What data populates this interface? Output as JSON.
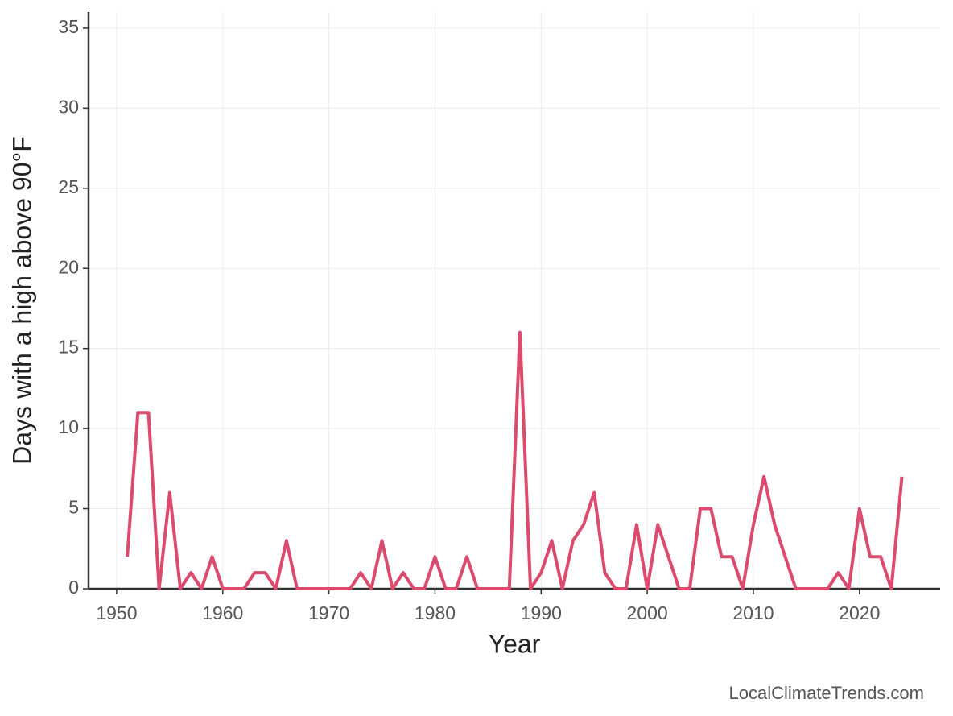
{
  "chart_data": {
    "type": "line",
    "x_label": "Year",
    "y_label": "Days with a high above 90°F",
    "source": "LocalClimateTrends.com",
    "x": [
      1951,
      1952,
      1953,
      1954,
      1955,
      1956,
      1957,
      1958,
      1959,
      1960,
      1961,
      1962,
      1963,
      1964,
      1965,
      1966,
      1967,
      1968,
      1969,
      1970,
      1971,
      1972,
      1973,
      1974,
      1975,
      1976,
      1977,
      1978,
      1979,
      1980,
      1981,
      1982,
      1983,
      1984,
      1985,
      1986,
      1987,
      1988,
      1989,
      1990,
      1991,
      1992,
      1993,
      1994,
      1995,
      1996,
      1997,
      1998,
      1999,
      2000,
      2001,
      2002,
      2003,
      2004,
      2005,
      2006,
      2007,
      2008,
      2009,
      2010,
      2011,
      2012,
      2013,
      2014,
      2015,
      2016,
      2017,
      2018,
      2019,
      2020,
      2021,
      2022,
      2023,
      2024
    ],
    "series": [
      {
        "color": "#dc4a6e",
        "values": [
          2,
          11,
          11,
          0,
          6,
          0,
          1,
          0,
          2,
          0,
          0,
          0,
          1,
          1,
          0,
          3,
          0,
          0,
          0,
          0,
          0,
          0,
          1,
          0,
          3,
          0,
          1,
          0,
          0,
          2,
          0,
          0,
          2,
          0,
          0,
          0,
          0,
          16,
          0,
          1,
          3,
          0,
          3,
          4,
          6,
          1,
          0,
          0,
          4,
          0,
          4,
          2,
          0,
          0,
          5,
          5,
          2,
          2,
          0,
          4,
          7,
          4,
          2,
          0,
          0,
          0,
          0,
          1,
          0,
          5,
          2,
          2,
          0,
          7
        ]
      }
    ],
    "xlim": [
      1947.35,
      2027.6
    ],
    "xticks": [
      1950,
      1960,
      1970,
      1980,
      1990,
      2000,
      2010,
      2020
    ],
    "ylim": [
      0,
      36
    ],
    "yticks": [
      0,
      5,
      10,
      15,
      20,
      25,
      30,
      35
    ],
    "grid": true
  }
}
